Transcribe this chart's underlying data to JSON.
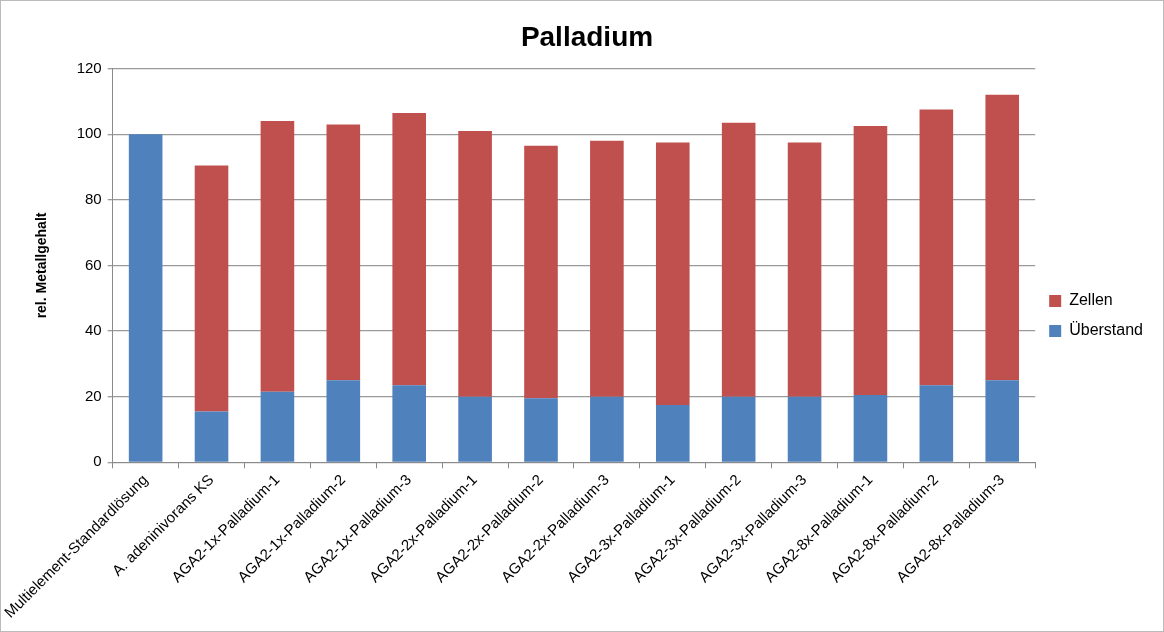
{
  "chart_data": {
    "type": "bar",
    "title": "Palladium",
    "ylabel": "rel. Metallgehalt",
    "categories": [
      "Multielement-Standardlösung",
      "A. adeninivorans KS",
      "AGA2-1x-Palladium-1",
      "AGA2-1x-Palladium-2",
      "AGA2-1x-Palladium-3",
      "AGA2-2x-Palladium-1",
      "AGA2-2x-Palladium-2",
      "AGA2-2x-Palladium-3",
      "AGA2-3x-Palladium-1",
      "AGA2-3x-Palladium-2",
      "AGA2-3x-Palladium-3",
      "AGA2-8x-Palladium-1",
      "AGA2-8x-Palladium-2",
      "AGA2-8x-Palladium-3"
    ],
    "series": [
      {
        "name": "Überstand",
        "color": "#4f81bd",
        "values": [
          100,
          15.5,
          21.5,
          25,
          23.5,
          20,
          19.5,
          20,
          17.5,
          20,
          20,
          20.5,
          23.5,
          25
        ]
      },
      {
        "name": "Zellen",
        "color": "#c0504d",
        "values": [
          0,
          75,
          82.5,
          78,
          83,
          81,
          77,
          78,
          80,
          83.5,
          77.5,
          82,
          84,
          87
        ]
      }
    ],
    "stacked": true,
    "ylim": [
      0,
      120
    ],
    "yticks": [
      0,
      20,
      40,
      60,
      80,
      100,
      120
    ],
    "grid": "y",
    "legend": "right"
  }
}
